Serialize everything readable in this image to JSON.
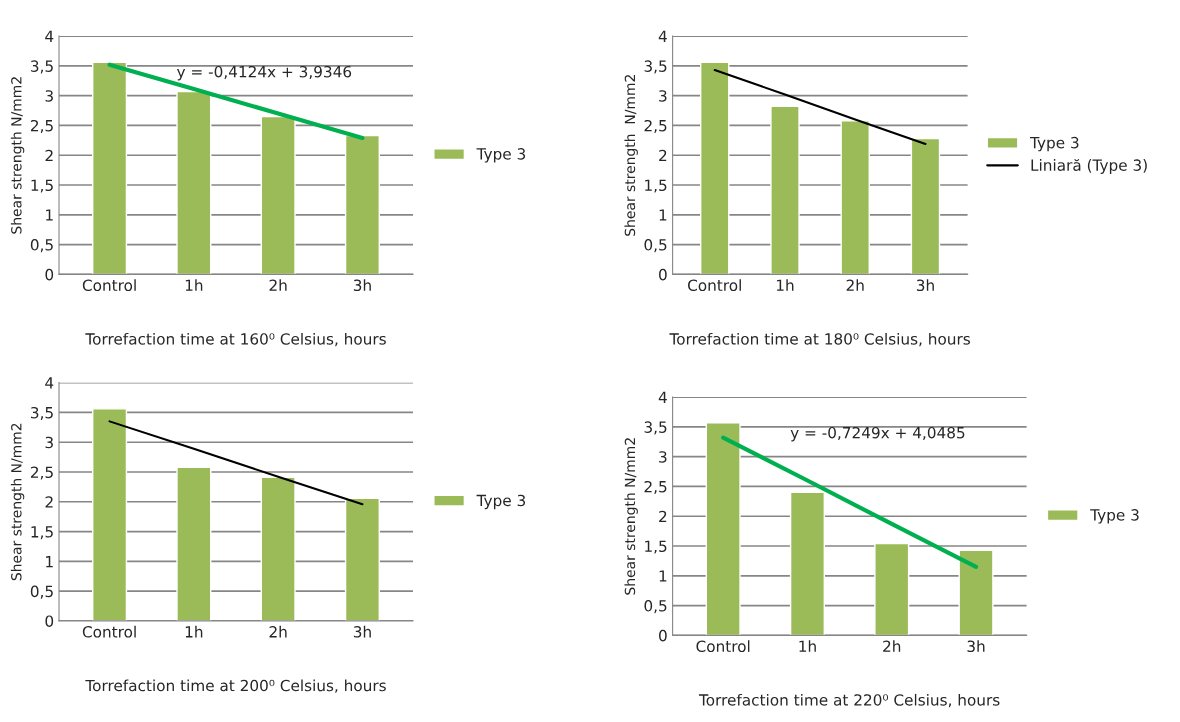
{
  "chart_data": [
    {
      "type": "bar",
      "xlabel": "Torrefaction time at 160⁰ Celsius, hours",
      "ylabel": "Shear strength N/mm2",
      "categories": [
        "Control",
        "1h",
        "2h",
        "3h"
      ],
      "ylim": [
        0,
        4
      ],
      "yticks": [
        0,
        {
          "value": 0.5,
          "label": "0,5"
        },
        1,
        {
          "value": 1.5,
          "label": "1,5"
        },
        2,
        {
          "value": 2.5,
          "label": "2,5"
        },
        3,
        {
          "value": 3.5,
          "label": "3,5"
        },
        4
      ],
      "grid": "y",
      "legend": "right",
      "annotations": [
        "y = -0,4124x + 3,9346"
      ],
      "series": [
        {
          "name": "Type 3",
          "color": "#9bbb59",
          "values": [
            3.56,
            3.07,
            2.65,
            2.33
          ]
        },
        {
          "type": "line",
          "color": "#00b050",
          "values": [
            3.52,
            3.11,
            2.7,
            2.29
          ]
        }
      ]
    },
    {
      "type": "bar",
      "xlabel": "Torrefaction time at 180⁰ Celsius, hours",
      "ylabel": "Shear strength  N/mm2",
      "categories": [
        "Control",
        "1h",
        "2h",
        "3h"
      ],
      "ylim": [
        0,
        4
      ],
      "yticks": [
        0,
        {
          "value": 0.5,
          "label": "0,5"
        },
        1,
        {
          "value": 1.5,
          "label": "1,5"
        },
        2,
        {
          "value": 2.5,
          "label": "2,5"
        },
        3,
        {
          "value": 3.5,
          "label": "3,5"
        },
        4
      ],
      "grid": "y",
      "legend": "right",
      "series": [
        {
          "name": "Type 3",
          "color": "#9bbb59",
          "values": [
            3.56,
            2.82,
            2.58,
            2.28
          ]
        },
        {
          "name": "Liniară (Type 3)",
          "type": "line",
          "color": "#000000",
          "values": [
            3.43,
            3.02,
            2.6,
            2.19
          ]
        }
      ]
    },
    {
      "type": "bar",
      "xlabel": "Torrefaction time at 200⁰ Celsius, hours",
      "ylabel": "Shear strength N/mm2",
      "categories": [
        "Control",
        "1h",
        "2h",
        "3h"
      ],
      "ylim": [
        0,
        4
      ],
      "yticks": [
        0,
        {
          "value": 0.5,
          "label": "0,5"
        },
        1,
        {
          "value": 1.5,
          "label": "1,5"
        },
        2,
        {
          "value": 2.5,
          "label": "2,5"
        },
        3,
        {
          "value": 3.5,
          "label": "3,5"
        },
        4
      ],
      "grid": "y",
      "legend": "right",
      "series": [
        {
          "name": "Type 3",
          "color": "#9bbb59",
          "values": [
            3.56,
            2.58,
            2.41,
            2.06
          ]
        },
        {
          "type": "line",
          "color": "#000000",
          "values": [
            3.35,
            2.89,
            2.42,
            1.96
          ]
        }
      ]
    },
    {
      "type": "bar",
      "xlabel": "Torrefaction time at 220⁰ Celsius, hours",
      "ylabel": "Shear strength N/mm2",
      "categories": [
        "Control",
        "1h",
        "2h",
        "3h"
      ],
      "ylim": [
        0,
        4
      ],
      "yticks": [
        0,
        {
          "value": 0.5,
          "label": "0,5"
        },
        1,
        {
          "value": 1.5,
          "label": "1,5"
        },
        2,
        {
          "value": 2.5,
          "label": "2,5"
        },
        3,
        {
          "value": 3.5,
          "label": "3,5"
        },
        4
      ],
      "grid": "y",
      "legend": "right",
      "annotations": [
        "y = -0,7249x + 4,0485"
      ],
      "series": [
        {
          "name": "Type 3",
          "color": "#9bbb59",
          "values": [
            3.57,
            2.4,
            1.54,
            1.43
          ]
        },
        {
          "type": "line",
          "color": "#00b050",
          "values": [
            3.32,
            2.6,
            1.87,
            1.15
          ]
        }
      ]
    }
  ]
}
